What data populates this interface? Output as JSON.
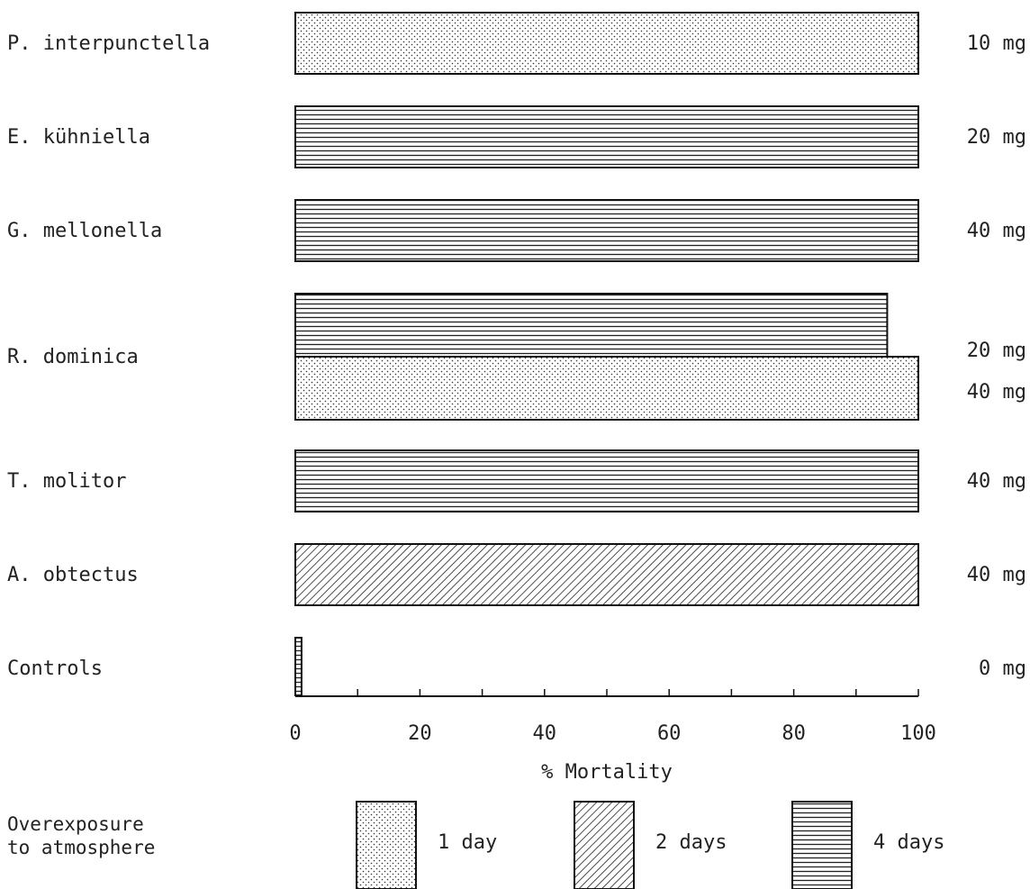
{
  "chart_data": {
    "type": "bar",
    "orientation": "horizontal",
    "title": "",
    "xlabel": "% Mortality",
    "ylabel": "",
    "xlim": [
      0,
      100
    ],
    "x_ticks": [
      "0",
      "20",
      "40",
      "60",
      "80",
      "100"
    ],
    "grid": false,
    "rows": [
      {
        "category": "P. interpunctella",
        "bars": [
          {
            "value": 100,
            "series": "1 day",
            "dose": "10 mg"
          }
        ]
      },
      {
        "category": "E. kühniella",
        "bars": [
          {
            "value": 100,
            "series": "4 days",
            "dose": "20 mg"
          }
        ]
      },
      {
        "category": "G. mellonella",
        "bars": [
          {
            "value": 100,
            "series": "4 days",
            "dose": "40 mg"
          }
        ]
      },
      {
        "category": "R. dominica",
        "bars": [
          {
            "value": 95,
            "series": "4 days",
            "dose": "20 mg"
          },
          {
            "value": 100,
            "series": "1 day",
            "dose": "40 mg"
          }
        ]
      },
      {
        "category": "T. molitor",
        "bars": [
          {
            "value": 100,
            "series": "4 days",
            "dose": "40 mg"
          }
        ]
      },
      {
        "category": "A. obtectus",
        "bars": [
          {
            "value": 100,
            "series": "2 days",
            "dose": "40 mg"
          }
        ]
      },
      {
        "category": "Controls",
        "bars": [
          {
            "value": 1,
            "series": "4 days",
            "dose": "0 mg"
          }
        ]
      }
    ],
    "legend": {
      "title_lines": [
        "Overexposure",
        "to atmosphere"
      ],
      "placement": "bottom",
      "items": [
        {
          "label": "1 day",
          "pattern": "dots"
        },
        {
          "label": "2 days",
          "pattern": "diagonal"
        },
        {
          "label": "4 days",
          "pattern": "horizontal"
        }
      ]
    }
  }
}
